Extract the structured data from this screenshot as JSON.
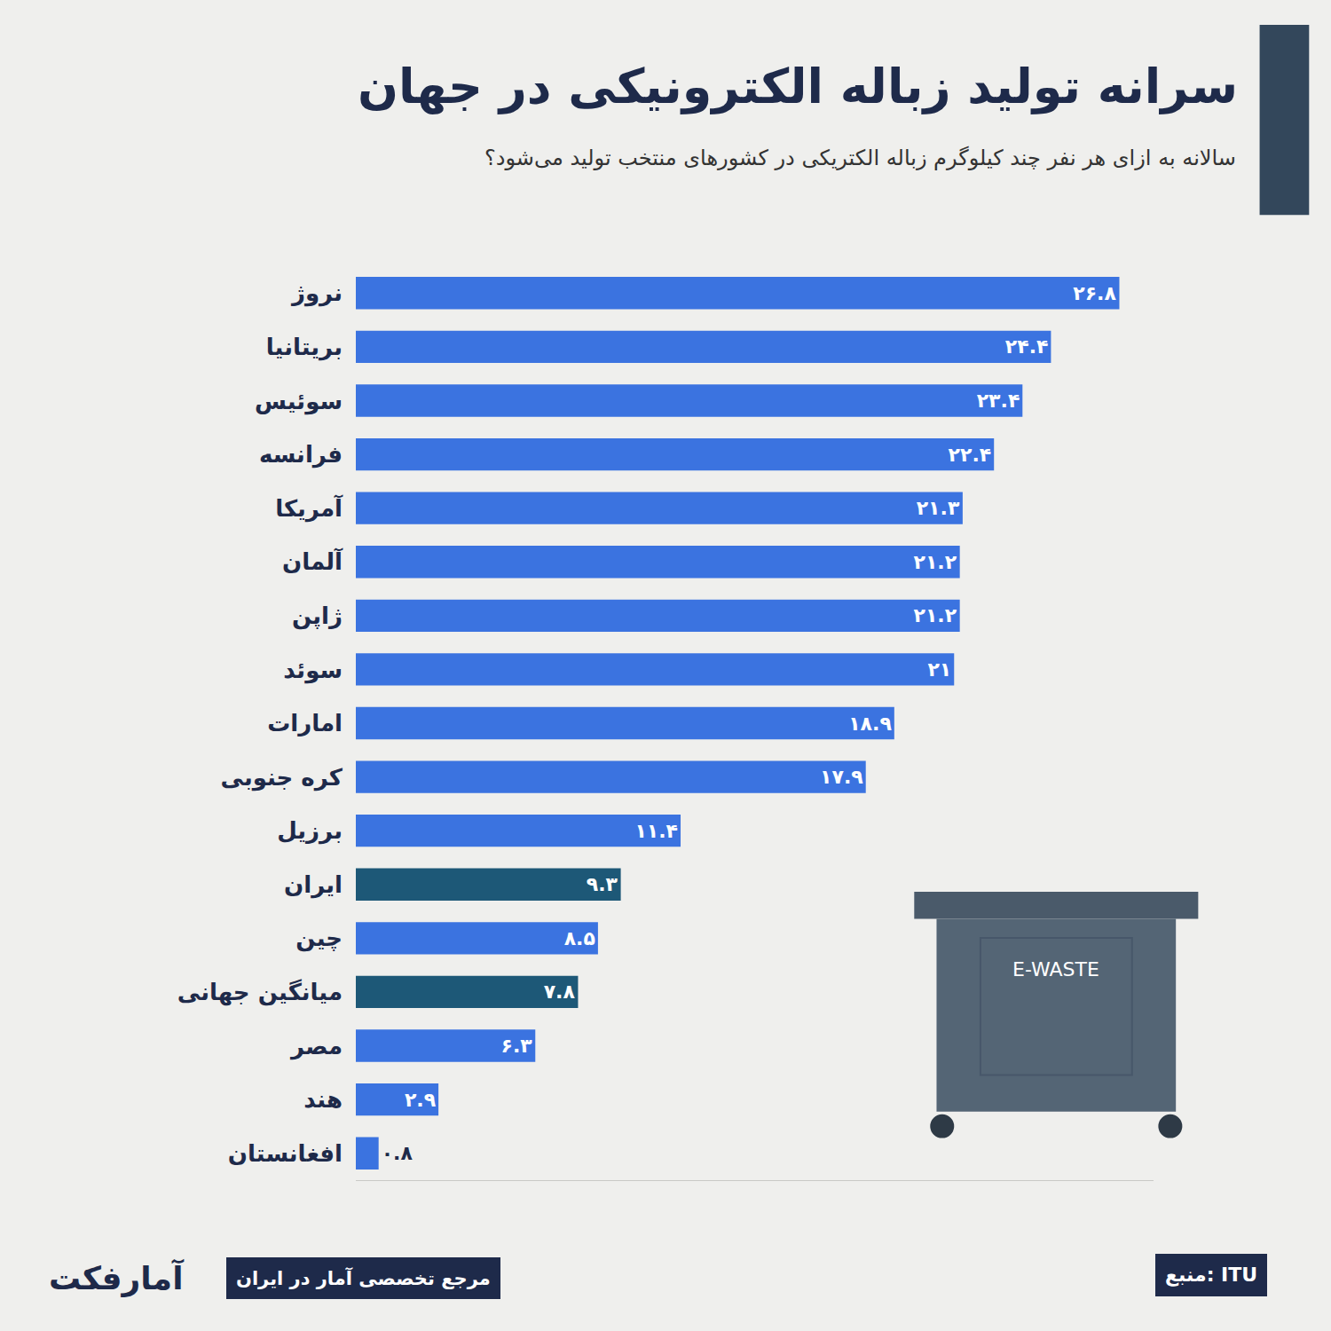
{
  "chart_data": {
    "type": "bar",
    "orientation": "horizontal",
    "title": "سرانه تولید زباله الکترونیکی در جهان",
    "subtitle": "سالانه به ازای هر نفر چند کیلوگرم زباله الکتریکی در کشورهای منتخب تولید می‌شود؟",
    "categories": [
      "نروژ",
      "بریتانیا",
      "سوئیس",
      "فرانسه",
      "آمریکا",
      "آلمان",
      "ژاپن",
      "سوئد",
      "امارات",
      "کره جنوبی",
      "برزیل",
      "ایران",
      "چین",
      "میانگین جهانی",
      "مصر",
      "هند",
      "افغانستان"
    ],
    "values": [
      26.8,
      24.4,
      23.4,
      22.4,
      21.3,
      21.2,
      21.2,
      21,
      18.9,
      17.9,
      11.4,
      9.3,
      8.5,
      7.8,
      6.3,
      2.9,
      0.8
    ],
    "value_labels": [
      "۲۶.۸",
      "۲۴.۴",
      "۲۳.۴",
      "۲۲.۴",
      "۲۱.۳",
      "۲۱.۲",
      "۲۱.۲",
      "۲۱",
      "۱۸.۹",
      "۱۷.۹",
      "۱۱.۴",
      "۹.۳",
      "۸.۵",
      "۷.۸",
      "۶.۳",
      "۲.۹",
      "۰.۸"
    ],
    "colors": [
      "#3b73e0",
      "#3b73e0",
      "#3b73e0",
      "#3b73e0",
      "#3b73e0",
      "#3b73e0",
      "#3b73e0",
      "#3b73e0",
      "#3b73e0",
      "#3b73e0",
      "#3b73e0",
      "#1d5877",
      "#3b73e0",
      "#1d5877",
      "#3b73e0",
      "#3b73e0",
      "#3b73e0"
    ],
    "xlim": [
      0,
      28
    ],
    "data_labels": true,
    "tick_labels": "y",
    "grid": false,
    "annotations": [
      "منبع: ITU",
      "مرجع تخصصی آمار در ایران",
      "آمارفکت",
      "E-WASTE"
    ]
  }
}
